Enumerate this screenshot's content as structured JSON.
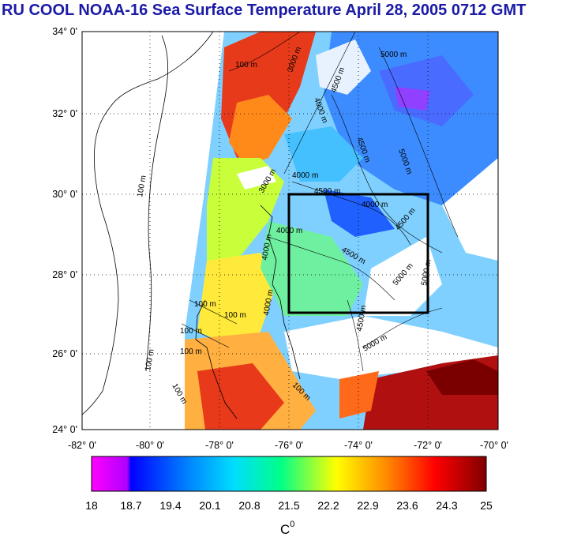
{
  "title": "RU COOL  NOAA-16 Sea Surface Temperature April 28, 2005 0712 GMT",
  "map": {
    "lat_labels": [
      "34° 0'",
      "32° 0'",
      "30° 0'",
      "28° 0'",
      "26° 0'",
      "24° 0'"
    ],
    "lon_labels": [
      "-82° 0'",
      "-80° 0'",
      "-78° 0'",
      "-76° 0'",
      "-74° 0'",
      "-72° 0'",
      "-70° 0'"
    ],
    "lat_range": [
      24,
      34
    ],
    "lon_range": [
      -82,
      -70
    ],
    "grid": true,
    "study_box": {
      "lon": [
        -76,
        -72
      ],
      "lat": [
        27,
        30
      ]
    },
    "contour_labels": [
      "100 m",
      "3000 m",
      "4500 m",
      "5000 m",
      "4000 m",
      "4500 m",
      "5000 m",
      "4000 m",
      "3000 m",
      "4500 m",
      "100 m",
      "4000 m",
      "4000 m",
      "4500 m",
      "4000 m",
      "4500 m",
      "5000 m",
      "5000 m",
      "4000 m",
      "100 m",
      "100 m",
      "100 m",
      "100 m",
      "4500 m",
      "5000 m",
      "100 m",
      "100 m",
      "100 m"
    ]
  },
  "colorbar": {
    "ticks": [
      "18",
      "18.7",
      "19.4",
      "20.1",
      "20.8",
      "21.5",
      "22.2",
      "22.9",
      "23.6",
      "24.3",
      "25"
    ],
    "range": [
      18,
      25
    ],
    "unit": "C",
    "unit_superscript": "0",
    "colors": [
      "#ff00ff",
      "#0000ff",
      "#00ccff",
      "#00ff66",
      "#ffff00",
      "#ff6600",
      "#cc0000",
      "#7a0000"
    ]
  }
}
